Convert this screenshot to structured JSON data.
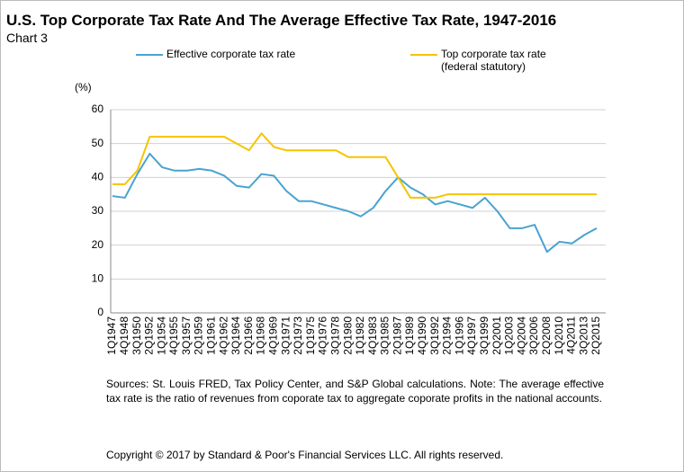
{
  "chart_data": {
    "type": "line",
    "title": "U.S. Top Corporate Tax Rate And The Average Effective Tax Rate, 1947-2016",
    "subtitle": "Chart 3",
    "y_label": "(%)",
    "categories": [
      "1Q1947",
      "4Q1948",
      "3Q1950",
      "2Q1952",
      "1Q1954",
      "4Q1955",
      "3Q1957",
      "2Q1959",
      "1Q1961",
      "4Q1962",
      "3Q1964",
      "2Q1966",
      "1Q1968",
      "4Q1969",
      "3Q1971",
      "2Q1973",
      "1Q1975",
      "4Q1976",
      "3Q1978",
      "2Q1980",
      "1Q1982",
      "4Q1983",
      "3Q1985",
      "2Q1987",
      "1Q1989",
      "4Q1990",
      "3Q1992",
      "2Q1994",
      "1Q1996",
      "4Q1997",
      "3Q1999",
      "2Q2001",
      "1Q2003",
      "4Q2004",
      "3Q2006",
      "2Q2008",
      "1Q2010",
      "4Q2011",
      "3Q2013",
      "2Q2015"
    ],
    "series": [
      {
        "name": "Effective corporate tax rate",
        "color": "#4aa3d0",
        "values": [
          34.5,
          34,
          41,
          47,
          43,
          42,
          42,
          42.5,
          42,
          40.5,
          37.5,
          37,
          41,
          40.5,
          36,
          33,
          33,
          32,
          31,
          30,
          28.5,
          31,
          36,
          40,
          37,
          35,
          32,
          33,
          32,
          31,
          34,
          30,
          25,
          25,
          26,
          18,
          21,
          20.5,
          23,
          25
        ]
      },
      {
        "name": "Top corporate tax rate (federal statutory)",
        "color": "#f5c400",
        "values": [
          38,
          38,
          42,
          52,
          52,
          52,
          52,
          52,
          52,
          52,
          50,
          48,
          53,
          49,
          48,
          48,
          48,
          48,
          48,
          46,
          46,
          46,
          46,
          40,
          34,
          34,
          34,
          35,
          35,
          35,
          35,
          35,
          35,
          35,
          35,
          35,
          35,
          35,
          35,
          35
        ]
      }
    ],
    "ylim": [
      0,
      60
    ],
    "yticks": [
      0,
      10,
      20,
      30,
      40,
      50,
      60
    ],
    "grid": true,
    "source": "Sources: St. Louis FRED, Tax Policy Center, and S&P Global calculations. Note: The average effective tax rate is the ratio of revenues from coporate tax to aggregate coporate profits in the national accounts.",
    "copyright": "Copyright © 2017 by Standard & Poor's Financial Services LLC. All rights reserved."
  }
}
